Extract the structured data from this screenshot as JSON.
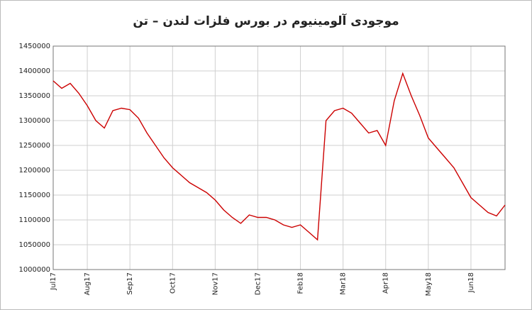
{
  "chart_data": {
    "type": "line",
    "title": "موجودی آلومینیوم در بورس فلزات لندن – تن",
    "categories": [
      "Jul17",
      null,
      null,
      null,
      "Aug17",
      null,
      null,
      null,
      null,
      "Sep17",
      null,
      null,
      null,
      null,
      "Oct17",
      null,
      null,
      null,
      null,
      "Nov17",
      null,
      null,
      null,
      null,
      "Dec17",
      null,
      null,
      null,
      null,
      "Feb18",
      null,
      null,
      null,
      null,
      "Mar18",
      null,
      null,
      null,
      null,
      "Apr18",
      null,
      null,
      null,
      null,
      "May18",
      null,
      null,
      null,
      null,
      "Jun18",
      null,
      null,
      null,
      null
    ],
    "series": [
      {
        "color": "#cc0000",
        "values": [
          1380000,
          1365000,
          1375000,
          1355000,
          1330000,
          1300000,
          1285000,
          1320000,
          1325000,
          1322000,
          1305000,
          1275000,
          1250000,
          1225000,
          1205000,
          1190000,
          1175000,
          1165000,
          1155000,
          1140000,
          1120000,
          1105000,
          1093000,
          1110000,
          1105000,
          1105000,
          1100000,
          1090000,
          1085000,
          1090000,
          1075000,
          1060000,
          1300000,
          1320000,
          1325000,
          1315000,
          1295000,
          1275000,
          1280000,
          1250000,
          1340000,
          1395000,
          1350000,
          1310000,
          1265000,
          1245000,
          1225000,
          1205000,
          1175000,
          1145000,
          1130000,
          1115000,
          1108000,
          1130000
        ]
      }
    ],
    "ylim": [
      1000000,
      1450000
    ],
    "yticks": [
      1000000,
      1050000,
      1100000,
      1150000,
      1200000,
      1250000,
      1300000,
      1350000,
      1400000,
      1450000
    ],
    "grid": true
  }
}
